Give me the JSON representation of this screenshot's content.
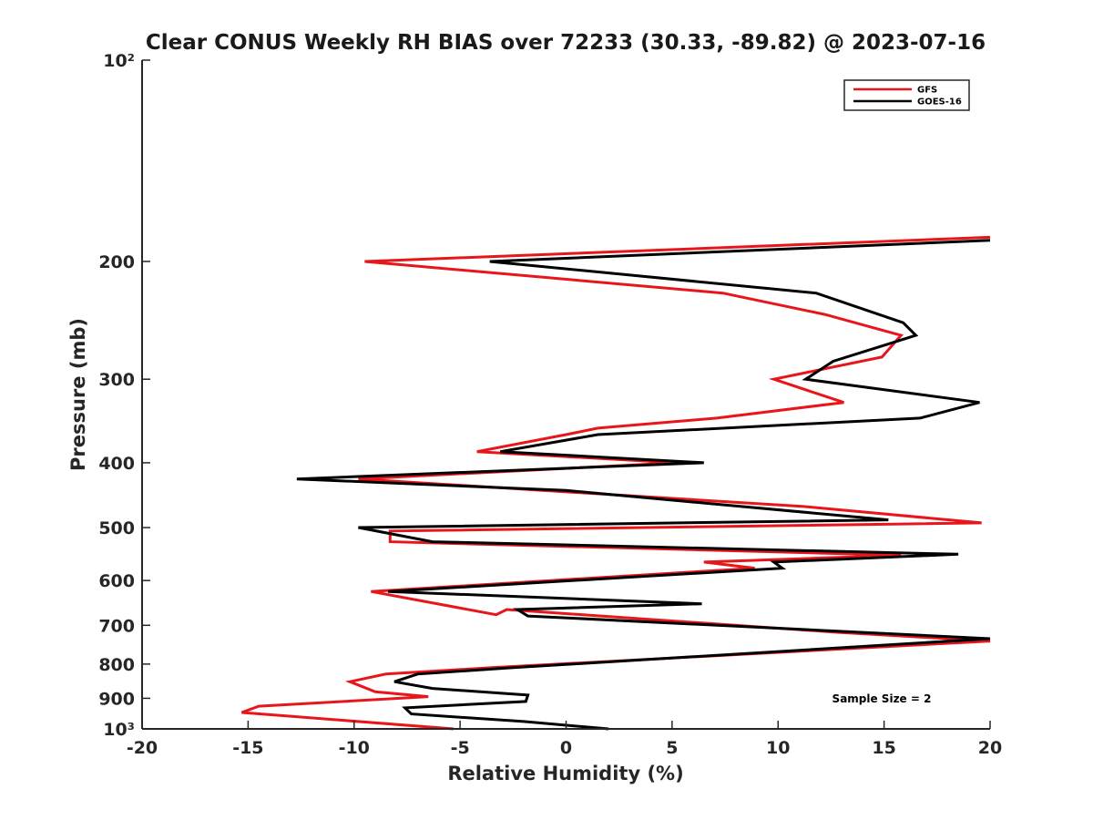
{
  "chart_data": {
    "type": "line",
    "title": "Clear CONUS Weekly RH BIAS over 72233 (30.33, -89.82) @ 2023-07-16",
    "xlabel": "Relative Humidity (%)",
    "ylabel": "Pressure (mb)",
    "xlim": [
      -20,
      20
    ],
    "ylim": [
      100,
      1000
    ],
    "y_scale": "log",
    "y_reversed": true,
    "grid": false,
    "legend_position": "top-right",
    "x_ticks": [
      -20,
      -15,
      -10,
      -5,
      0,
      5,
      10,
      15,
      20
    ],
    "x_tick_labels": [
      "-20",
      "-15",
      "-10",
      "-5",
      "0",
      "5",
      "10",
      "15",
      "20"
    ],
    "y_ticks": [
      100,
      200,
      300,
      400,
      500,
      600,
      700,
      800,
      900,
      1000
    ],
    "y_tick_labels": [
      "10²",
      "200",
      "300",
      "400",
      "500",
      "600",
      "700",
      "800",
      "900",
      "10³"
    ],
    "annotation": "Sample Size = 2",
    "series": [
      {
        "name": "GFS",
        "color": "#e8161b",
        "points": [
          [
            20.0,
            184
          ],
          [
            -9.5,
            200
          ],
          [
            7.4,
            223
          ],
          [
            12.2,
            240
          ],
          [
            15.8,
            258
          ],
          [
            14.9,
            278
          ],
          [
            9.8,
            300
          ],
          [
            13.1,
            325
          ],
          [
            7.1,
            343
          ],
          [
            1.5,
            355
          ],
          [
            0.0,
            363
          ],
          [
            -4.2,
            385
          ],
          [
            5.2,
            400
          ],
          [
            -9.8,
            423
          ],
          [
            11.2,
            465
          ],
          [
            19.6,
            492
          ],
          [
            -8.3,
            506
          ],
          [
            -8.3,
            525
          ],
          [
            15.8,
            550
          ],
          [
            6.5,
            563
          ],
          [
            8.9,
            575
          ],
          [
            -9.2,
            623
          ],
          [
            -3.3,
            675
          ],
          [
            -2.8,
            663
          ],
          [
            12.8,
            717
          ],
          [
            20.0,
            739
          ],
          [
            -3.5,
            810
          ],
          [
            -8.5,
            828
          ],
          [
            -10.2,
            850
          ],
          [
            -9.0,
            880
          ],
          [
            -6.5,
            895
          ],
          [
            -14.5,
            925
          ],
          [
            -15.3,
            945
          ],
          [
            -5.3,
            1000
          ]
        ]
      },
      {
        "name": "GOES-16",
        "color": "#000000",
        "points": [
          [
            20.0,
            186
          ],
          [
            -3.6,
            200
          ],
          [
            11.8,
            223
          ],
          [
            15.9,
            247
          ],
          [
            16.5,
            258
          ],
          [
            12.6,
            282
          ],
          [
            11.3,
            300
          ],
          [
            19.5,
            325
          ],
          [
            16.7,
            343
          ],
          [
            1.5,
            363
          ],
          [
            -3.1,
            385
          ],
          [
            6.5,
            400
          ],
          [
            -12.7,
            423
          ],
          [
            0.0,
            440
          ],
          [
            15.2,
            487
          ],
          [
            -9.8,
            500
          ],
          [
            -6.3,
            525
          ],
          [
            18.5,
            548
          ],
          [
            9.8,
            563
          ],
          [
            10.2,
            575
          ],
          [
            -8.4,
            623
          ],
          [
            6.4,
            650
          ],
          [
            -2.3,
            663
          ],
          [
            -1.8,
            678
          ],
          [
            13.9,
            717
          ],
          [
            20.0,
            733
          ],
          [
            -2.5,
            810
          ],
          [
            -7.0,
            828
          ],
          [
            -8.1,
            850
          ],
          [
            -6.3,
            870
          ],
          [
            -1.8,
            890
          ],
          [
            -1.9,
            910
          ],
          [
            -7.6,
            930
          ],
          [
            -7.3,
            950
          ],
          [
            -2.0,
            975
          ],
          [
            2.0,
            1000
          ]
        ]
      }
    ]
  }
}
